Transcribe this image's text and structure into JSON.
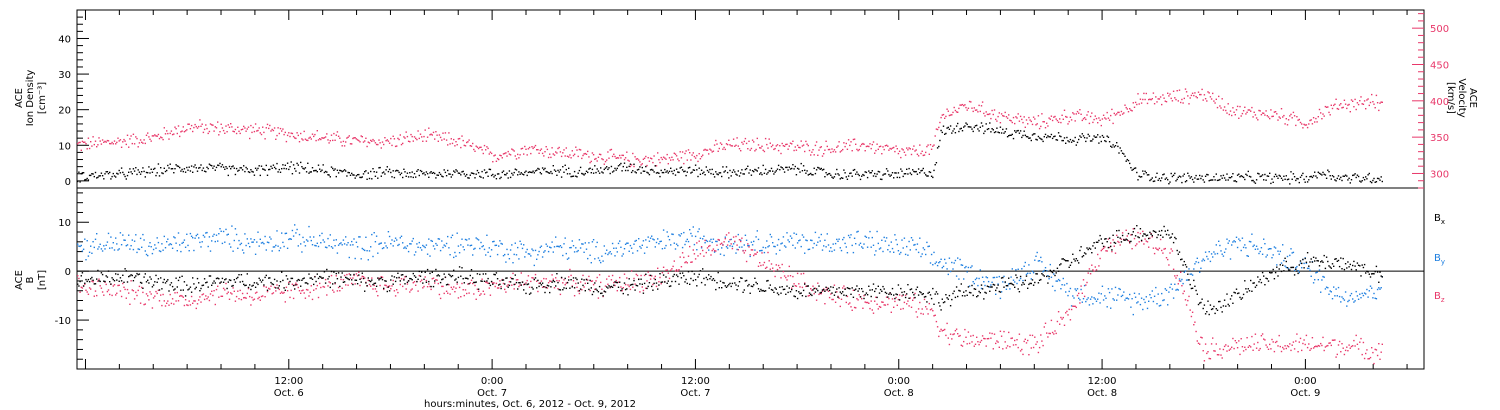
{
  "colors": {
    "density": "#000000",
    "velocity": "#e8386a",
    "bx": "#000000",
    "by": "#1e7fe0",
    "bz": "#e8386a",
    "frame": "#000000"
  },
  "xlabel": "hours:minutes, Oct.  6, 2012 - Oct.  9, 2012",
  "x_ticks": [
    {
      "hour": 12,
      "time": "12:00",
      "date": "Oct. 6"
    },
    {
      "hour": 24,
      "time": "0:00",
      "date": "Oct. 7"
    },
    {
      "hour": 36,
      "time": "12:00",
      "date": "Oct. 7"
    },
    {
      "hour": 48,
      "time": "0:00",
      "date": "Oct. 8"
    },
    {
      "hour": 60,
      "time": "12:00",
      "date": "Oct. 8"
    },
    {
      "hour": 72,
      "time": "0:00",
      "date": "Oct. 9"
    }
  ],
  "chart_data": [
    {
      "type": "scatter",
      "panel": "plasma",
      "xlim_hours": [
        -0.5,
        79
      ],
      "x_unit": "hours since Oct. 6 00:00",
      "left_axis": {
        "label_lines": [
          "ACE",
          "Ion Density",
          "[cm⁻³]"
        ],
        "ylim": [
          -2,
          48
        ],
        "ticks": [
          0,
          10,
          20,
          30,
          40
        ]
      },
      "right_axis": {
        "label_lines": [
          "ACE",
          "Velocity",
          "[km/s]"
        ],
        "ylim": [
          280,
          525
        ],
        "ticks": [
          300,
          350,
          400,
          450,
          500
        ]
      },
      "series": [
        {
          "name": "Ion Density",
          "axis": "left",
          "color_key": "density",
          "points": [
            [
              -0.5,
              1.5
            ],
            [
              2,
              2
            ],
            [
              4,
              3
            ],
            [
              6,
              4
            ],
            [
              8,
              3.5
            ],
            [
              10,
              3
            ],
            [
              12,
              4
            ],
            [
              14,
              3
            ],
            [
              16,
              2
            ],
            [
              18,
              2.5
            ],
            [
              20,
              2
            ],
            [
              22,
              2.5
            ],
            [
              24,
              2
            ],
            [
              26,
              2.5
            ],
            [
              28,
              3
            ],
            [
              30,
              3
            ],
            [
              32,
              4
            ],
            [
              34,
              3
            ],
            [
              36,
              3
            ],
            [
              38,
              2.5
            ],
            [
              40,
              3
            ],
            [
              42,
              3.5
            ],
            [
              44,
              2
            ],
            [
              46,
              2
            ],
            [
              48,
              2
            ],
            [
              49,
              2.5
            ],
            [
              50,
              2.5
            ],
            [
              50.5,
              14
            ],
            [
              52,
              16
            ],
            [
              54,
              14
            ],
            [
              56,
              13
            ],
            [
              58,
              12
            ],
            [
              60,
              12
            ],
            [
              61,
              9
            ],
            [
              62,
              2
            ],
            [
              64,
              1
            ],
            [
              66,
              1
            ],
            [
              68,
              1
            ],
            [
              70,
              1
            ],
            [
              72,
              1
            ],
            [
              73,
              2.5
            ],
            [
              74,
              1
            ],
            [
              76,
              1
            ],
            [
              76.5,
              1
            ]
          ]
        },
        {
          "name": "Velocity",
          "axis": "right",
          "color_key": "velocity",
          "points": [
            [
              -0.5,
              340
            ],
            [
              2,
              345
            ],
            [
              4,
              350
            ],
            [
              6,
              365
            ],
            [
              8,
              363
            ],
            [
              10,
              360
            ],
            [
              12,
              355
            ],
            [
              14,
              350
            ],
            [
              16,
              345
            ],
            [
              18,
              345
            ],
            [
              20,
              352
            ],
            [
              22,
              345
            ],
            [
              24,
              325
            ],
            [
              26,
              335
            ],
            [
              28,
              330
            ],
            [
              30,
              325
            ],
            [
              32,
              320
            ],
            [
              34,
              320
            ],
            [
              36,
              328
            ],
            [
              38,
              340
            ],
            [
              40,
              340
            ],
            [
              42,
              337
            ],
            [
              44,
              335
            ],
            [
              46,
              340
            ],
            [
              48,
              330
            ],
            [
              49,
              330
            ],
            [
              50,
              335
            ],
            [
              50.5,
              380
            ],
            [
              52,
              395
            ],
            [
              54,
              380
            ],
            [
              56,
              370
            ],
            [
              58,
              380
            ],
            [
              60,
              375
            ],
            [
              61,
              385
            ],
            [
              62,
              400
            ],
            [
              64,
              405
            ],
            [
              66,
              410
            ],
            [
              68,
              385
            ],
            [
              70,
              383
            ],
            [
              72,
              370
            ],
            [
              73,
              385
            ],
            [
              74,
              395
            ],
            [
              76,
              400
            ],
            [
              76.5,
              395
            ]
          ]
        }
      ]
    },
    {
      "type": "scatter",
      "panel": "magnetic",
      "xlim_hours": [
        -0.5,
        79
      ],
      "x_unit": "hours since Oct. 6 00:00",
      "left_axis": {
        "label_lines": [
          "ACE",
          "B",
          "[nT]"
        ],
        "ylim": [
          -20,
          17
        ],
        "ticks": [
          -10,
          0,
          10
        ]
      },
      "zero_line": true,
      "series": [
        {
          "name": "Bx",
          "label": "B",
          "subscript": "x",
          "color_key": "bx",
          "points": [
            [
              -0.5,
              -2
            ],
            [
              2,
              -1
            ],
            [
              4,
              -2
            ],
            [
              6,
              -3
            ],
            [
              8,
              -2
            ],
            [
              10,
              -2
            ],
            [
              12,
              -2
            ],
            [
              14,
              -1
            ],
            [
              16,
              -2
            ],
            [
              18,
              -2
            ],
            [
              20,
              -1
            ],
            [
              22,
              -1
            ],
            [
              24,
              -2
            ],
            [
              26,
              -3
            ],
            [
              28,
              -2
            ],
            [
              30,
              -3
            ],
            [
              32,
              -3
            ],
            [
              34,
              -2
            ],
            [
              36,
              -1
            ],
            [
              38,
              -2
            ],
            [
              40,
              -3
            ],
            [
              42,
              -4
            ],
            [
              44,
              -4
            ],
            [
              46,
              -4
            ],
            [
              48,
              -4
            ],
            [
              49,
              -4
            ],
            [
              50,
              -5
            ],
            [
              50.5,
              -6
            ],
            [
              52,
              -4
            ],
            [
              54,
              -3
            ],
            [
              56,
              -2
            ],
            [
              58,
              2
            ],
            [
              60,
              6
            ],
            [
              62,
              8
            ],
            [
              64,
              8
            ],
            [
              66,
              -8
            ],
            [
              68,
              -5
            ],
            [
              70,
              0
            ],
            [
              72,
              2
            ],
            [
              74,
              2
            ],
            [
              76,
              0
            ],
            [
              76.5,
              -1
            ]
          ]
        },
        {
          "name": "By",
          "label": "B",
          "subscript": "y",
          "color_key": "by",
          "points": [
            [
              -0.5,
              5
            ],
            [
              2,
              6
            ],
            [
              4,
              5
            ],
            [
              6,
              6
            ],
            [
              8,
              7
            ],
            [
              10,
              6
            ],
            [
              12,
              7
            ],
            [
              14,
              6
            ],
            [
              16,
              5
            ],
            [
              18,
              6
            ],
            [
              20,
              5
            ],
            [
              22,
              6
            ],
            [
              24,
              5
            ],
            [
              26,
              4
            ],
            [
              28,
              5
            ],
            [
              30,
              4
            ],
            [
              32,
              5
            ],
            [
              34,
              6
            ],
            [
              36,
              7
            ],
            [
              38,
              6
            ],
            [
              40,
              6
            ],
            [
              42,
              6
            ],
            [
              44,
              6
            ],
            [
              46,
              6
            ],
            [
              48,
              5
            ],
            [
              49,
              5
            ],
            [
              50,
              2
            ],
            [
              50.5,
              2
            ],
            [
              52,
              0
            ],
            [
              54,
              -3
            ],
            [
              56,
              2
            ],
            [
              58,
              -4
            ],
            [
              60,
              -5
            ],
            [
              62,
              -6
            ],
            [
              64,
              -4
            ],
            [
              66,
              3
            ],
            [
              68,
              6
            ],
            [
              70,
              4
            ],
            [
              72,
              1
            ],
            [
              74,
              -5
            ],
            [
              76,
              -4
            ],
            [
              76.5,
              -2
            ]
          ]
        },
        {
          "name": "Bz",
          "label": "B",
          "subscript": "z",
          "color_key": "bz",
          "points": [
            [
              -0.5,
              -3
            ],
            [
              2,
              -4
            ],
            [
              4,
              -5
            ],
            [
              6,
              -6
            ],
            [
              8,
              -4
            ],
            [
              10,
              -5
            ],
            [
              12,
              -4
            ],
            [
              14,
              -3
            ],
            [
              16,
              -2
            ],
            [
              18,
              -3
            ],
            [
              20,
              -2
            ],
            [
              22,
              -4
            ],
            [
              24,
              -3
            ],
            [
              26,
              -2
            ],
            [
              28,
              -2
            ],
            [
              30,
              -3
            ],
            [
              32,
              -2
            ],
            [
              34,
              -1
            ],
            [
              36,
              4
            ],
            [
              38,
              6
            ],
            [
              40,
              2
            ],
            [
              42,
              -2
            ],
            [
              44,
              -5
            ],
            [
              46,
              -6
            ],
            [
              48,
              -6
            ],
            [
              49,
              -7
            ],
            [
              50,
              -8
            ],
            [
              50.5,
              -12
            ],
            [
              52,
              -14
            ],
            [
              54,
              -14
            ],
            [
              56,
              -15
            ],
            [
              58,
              -9
            ],
            [
              60,
              5
            ],
            [
              62,
              7
            ],
            [
              64,
              4
            ],
            [
              66,
              -16
            ],
            [
              68,
              -15
            ],
            [
              70,
              -15
            ],
            [
              72,
              -15
            ],
            [
              74,
              -15
            ],
            [
              76,
              -16
            ],
            [
              76.5,
              -16
            ]
          ]
        }
      ]
    }
  ]
}
